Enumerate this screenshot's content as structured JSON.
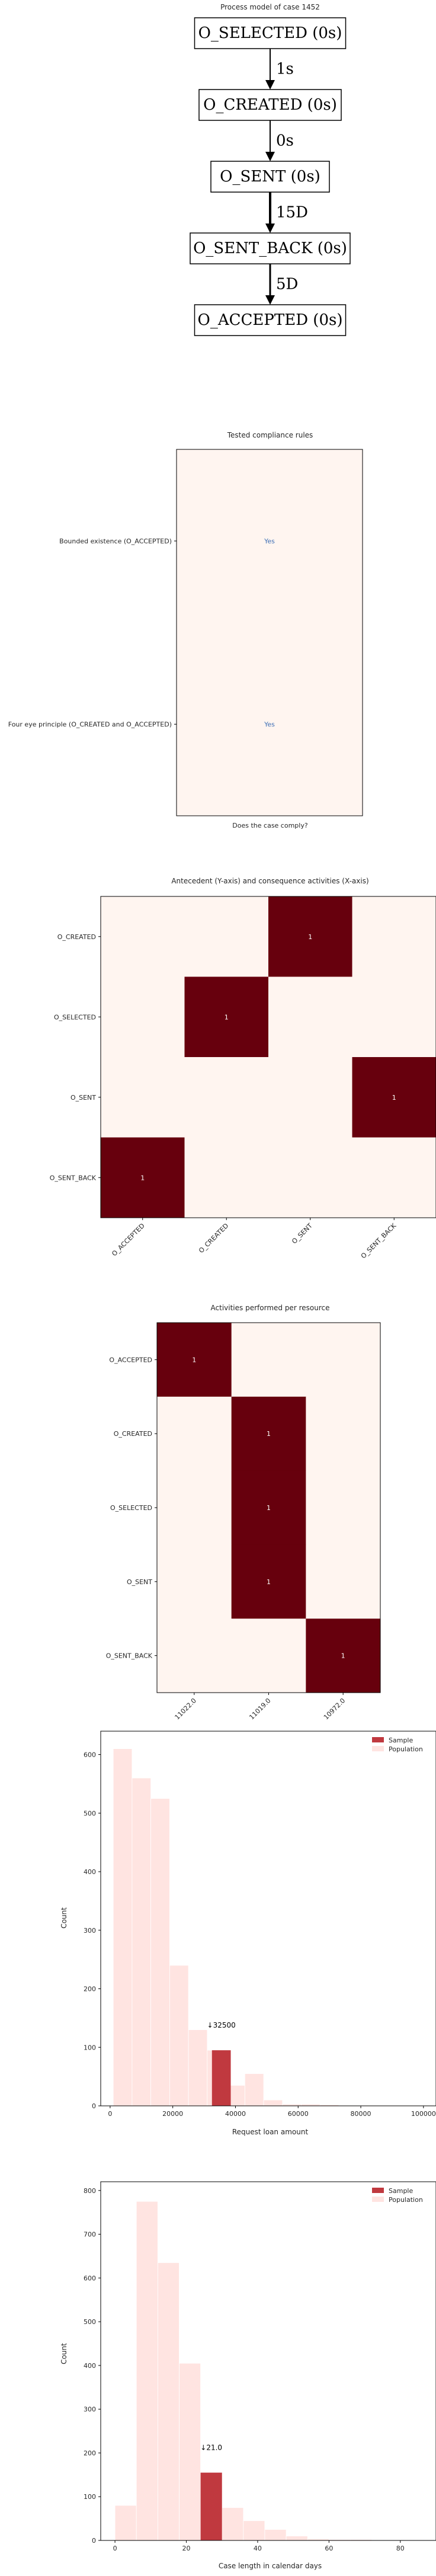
{
  "process_model": {
    "title": "Process model of case 1452",
    "nodes": [
      "O_SELECTED (0s)",
      "O_CREATED (0s)",
      "O_SENT (0s)",
      "O_SENT_BACK (0s)",
      "O_ACCEPTED (0s)"
    ],
    "edges": [
      {
        "from": 0,
        "to": 1,
        "label": "1s"
      },
      {
        "from": 1,
        "to": 2,
        "label": "0s"
      },
      {
        "from": 2,
        "to": 3,
        "label": "15D"
      },
      {
        "from": 3,
        "to": 4,
        "label": "5D"
      }
    ]
  },
  "chart_data": [
    {
      "type": "heatmap",
      "title": "Tested compliance rules",
      "xlabel": "Does the case comply?",
      "rows": [
        "Bounded existence (O_ACCEPTED)",
        "Four eye principle (O_CREATED and O_ACCEPTED)"
      ],
      "cells": [
        "Yes",
        "Yes"
      ],
      "colors": {
        "background": "#fff5f0",
        "text": "#3f6fb5"
      }
    },
    {
      "type": "heatmap",
      "title": "Antecedent (Y-axis) and consequence activities (X-axis)",
      "rows": [
        "O_CREATED",
        "O_SELECTED",
        "O_SENT",
        "O_SENT_BACK"
      ],
      "columns": [
        "O_ACCEPTED",
        "O_CREATED",
        "O_SENT",
        "O_SENT_BACK"
      ],
      "matrix": [
        [
          0,
          0,
          1,
          0
        ],
        [
          0,
          1,
          0,
          0
        ],
        [
          0,
          0,
          0,
          1
        ],
        [
          1,
          0,
          0,
          0
        ]
      ],
      "colors": {
        "low": "#fff5f0",
        "high": "#67000d"
      }
    },
    {
      "type": "heatmap",
      "title": "Activities performed per resource",
      "rows": [
        "O_ACCEPTED",
        "O_CREATED",
        "O_SELECTED",
        "O_SENT",
        "O_SENT_BACK"
      ],
      "columns": [
        "11022.0",
        "11019.0",
        "10972.0"
      ],
      "matrix": [
        [
          1,
          0,
          0
        ],
        [
          0,
          1,
          0
        ],
        [
          0,
          1,
          0
        ],
        [
          0,
          1,
          0
        ],
        [
          0,
          0,
          1
        ]
      ],
      "colors": {
        "low": "#fff5f0",
        "high": "#67000d"
      }
    },
    {
      "type": "bar",
      "xlabel": "Request loan amount",
      "ylabel": "Count",
      "xlim": [
        -3000,
        104000
      ],
      "ylim": [
        0,
        640
      ],
      "xticks": [
        0,
        20000,
        40000,
        60000,
        80000,
        100000
      ],
      "yticks": [
        0,
        100,
        200,
        300,
        400,
        500,
        600
      ],
      "legend": {
        "position": "top-right",
        "entries": [
          "Sample",
          "Population"
        ]
      },
      "population": {
        "bin_width": 6000,
        "bins": [
          {
            "x": 1000,
            "count": 610
          },
          {
            "x": 7000,
            "count": 560
          },
          {
            "x": 13000,
            "count": 525
          },
          {
            "x": 19000,
            "count": 240
          },
          {
            "x": 25000,
            "count": 130
          },
          {
            "x": 31000,
            "count": 95
          },
          {
            "x": 37000,
            "count": 35
          },
          {
            "x": 43000,
            "count": 55
          },
          {
            "x": 49000,
            "count": 10
          },
          {
            "x": 55000,
            "count": 3
          },
          {
            "x": 61000,
            "count": 3
          },
          {
            "x": 67000,
            "count": 2
          },
          {
            "x": 73000,
            "count": 1
          },
          {
            "x": 79000,
            "count": 1
          },
          {
            "x": 85000,
            "count": 1
          },
          {
            "x": 91000,
            "count": 1
          },
          {
            "x": 97000,
            "count": 1
          }
        ]
      },
      "sample": {
        "x": 32500,
        "count": 95,
        "annotation": "↓32500"
      },
      "colors": {
        "sample": "#c0393f",
        "population": "#ffe4e1"
      }
    },
    {
      "type": "bar",
      "xlabel": "Case length in calendar days",
      "ylabel": "Count",
      "xlim": [
        -4,
        90
      ],
      "ylim": [
        0,
        820
      ],
      "xticks": [
        0,
        20,
        40,
        60,
        80
      ],
      "yticks": [
        0,
        100,
        200,
        300,
        400,
        500,
        600,
        700,
        800
      ],
      "legend": {
        "position": "top-right",
        "entries": [
          "Sample",
          "Population"
        ]
      },
      "population": {
        "bin_width": 6,
        "bins": [
          {
            "x": 0,
            "count": 80
          },
          {
            "x": 6,
            "count": 775
          },
          {
            "x": 12,
            "count": 635
          },
          {
            "x": 18,
            "count": 405
          },
          {
            "x": 24,
            "count": 155
          },
          {
            "x": 30,
            "count": 75
          },
          {
            "x": 36,
            "count": 45
          },
          {
            "x": 42,
            "count": 25
          },
          {
            "x": 48,
            "count": 10
          },
          {
            "x": 54,
            "count": 3
          },
          {
            "x": 60,
            "count": 2
          },
          {
            "x": 66,
            "count": 2
          },
          {
            "x": 72,
            "count": 1
          },
          {
            "x": 78,
            "count": 1
          }
        ]
      },
      "sample": {
        "x": 24,
        "count": 155,
        "annotation": "↓21.0"
      },
      "colors": {
        "sample": "#c0393f",
        "population": "#ffe4e1"
      }
    }
  ]
}
